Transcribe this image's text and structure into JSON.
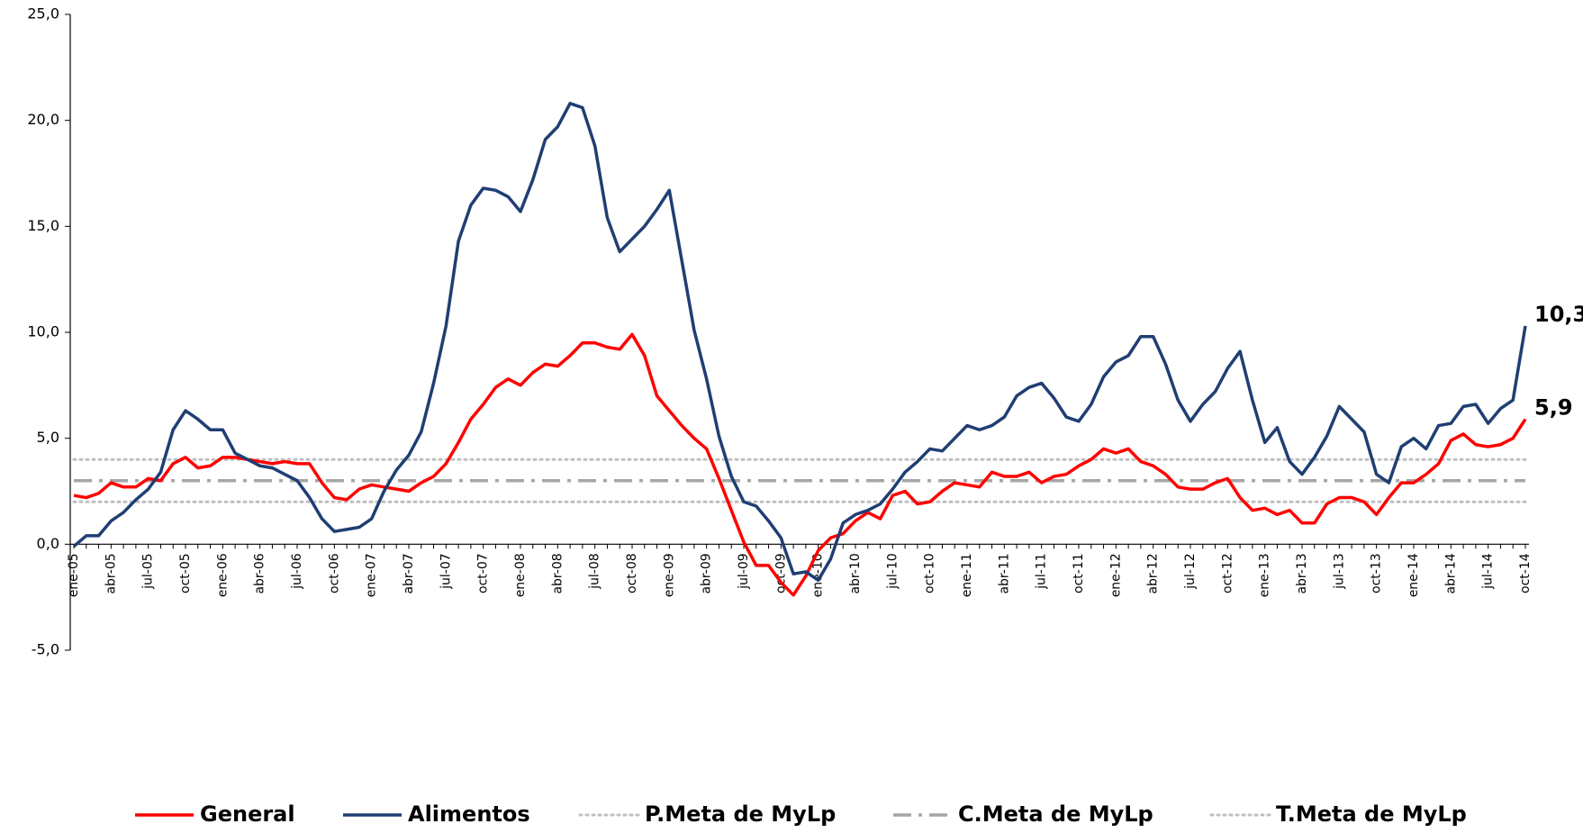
{
  "chart_data": {
    "type": "line",
    "categories": [
      "ene-05",
      null,
      null,
      "abr-05",
      null,
      null,
      "jul-05",
      null,
      null,
      "oct-05",
      null,
      null,
      "ene-06",
      null,
      null,
      "abr-06",
      null,
      null,
      "jul-06",
      null,
      null,
      "oct-06",
      null,
      null,
      "ene-07",
      null,
      null,
      "abr-07",
      null,
      null,
      "jul-07",
      null,
      null,
      "oct-07",
      null,
      null,
      "ene-08",
      null,
      null,
      "abr-08",
      null,
      null,
      "jul-08",
      null,
      null,
      "oct-08",
      null,
      null,
      "ene-09",
      null,
      null,
      "abr-09",
      null,
      null,
      "jul-09",
      null,
      null,
      "oct-09",
      null,
      null,
      "ene-10",
      null,
      null,
      "abr-10",
      null,
      null,
      "jul-10",
      null,
      null,
      "oct-10",
      null,
      null,
      "ene-11",
      null,
      null,
      "abr-11",
      null,
      null,
      "jul-11",
      null,
      null,
      "oct-11",
      null,
      null,
      "ene-12",
      null,
      null,
      "abr-12",
      null,
      null,
      "jul-12",
      null,
      null,
      "oct-12",
      null,
      null,
      "ene-13",
      null,
      null,
      "abr-13",
      null,
      null,
      "jul-13",
      null,
      null,
      "oct-13",
      null,
      null,
      "ene-14",
      null,
      null,
      "abr-14",
      null,
      null,
      "jul-14",
      null,
      null,
      "oct-14"
    ],
    "series": [
      {
        "name": "General",
        "color": "#ff0000",
        "style": "solid",
        "values": [
          2.3,
          2.2,
          2.4,
          2.9,
          2.7,
          2.7,
          3.1,
          3.0,
          3.8,
          4.1,
          3.6,
          3.7,
          4.1,
          4.1,
          4.0,
          3.9,
          3.8,
          3.9,
          3.8,
          3.8,
          2.9,
          2.2,
          2.1,
          2.6,
          2.8,
          2.7,
          2.6,
          2.5,
          2.9,
          3.2,
          3.8,
          4.8,
          5.9,
          6.6,
          7.4,
          7.8,
          7.5,
          8.1,
          8.5,
          8.4,
          8.9,
          9.5,
          9.5,
          9.3,
          9.2,
          9.9,
          8.9,
          7.0,
          6.3,
          5.6,
          5.0,
          4.5,
          3.1,
          1.6,
          0.1,
          -1.0,
          -1.0,
          -1.8,
          -2.4,
          -1.5,
          -0.3,
          0.3,
          0.5,
          1.1,
          1.5,
          1.2,
          2.3,
          2.5,
          1.9,
          2.0,
          2.5,
          2.9,
          2.8,
          2.7,
          3.4,
          3.2,
          3.2,
          3.4,
          2.9,
          3.2,
          3.3,
          3.7,
          4.0,
          4.5,
          4.3,
          4.5,
          3.9,
          3.7,
          3.3,
          2.7,
          2.6,
          2.6,
          2.9,
          3.1,
          2.2,
          1.6,
          1.7,
          1.4,
          1.6,
          1.0,
          1.0,
          1.9,
          2.2,
          2.2,
          2.0,
          1.4,
          2.2,
          2.9,
          2.9,
          3.3,
          3.8,
          4.9,
          5.2,
          4.7,
          4.6,
          4.7,
          5.0,
          5.9
        ],
        "value_labels": [
          null,
          null,
          null,
          null,
          null,
          null,
          null,
          null,
          null,
          null,
          null,
          null,
          null,
          null,
          null,
          null,
          null,
          null,
          null,
          null,
          null,
          null,
          null,
          null,
          null,
          null,
          null,
          null,
          null,
          null,
          null,
          null,
          null,
          null,
          null,
          null,
          null,
          null,
          null,
          null,
          null,
          null,
          null,
          null,
          null,
          null,
          null,
          null,
          null,
          null,
          null,
          null,
          null,
          null,
          null,
          null,
          null,
          null,
          null,
          null,
          null,
          null,
          null,
          null,
          null,
          null,
          null,
          null,
          null,
          null,
          null,
          null,
          null,
          null,
          null,
          null,
          null,
          null,
          null,
          null,
          null,
          null,
          null,
          null,
          null,
          null,
          null,
          null,
          null,
          null,
          null,
          null,
          null,
          null,
          null,
          null,
          null,
          null,
          null,
          null,
          null,
          null,
          null,
          null,
          null,
          null,
          null,
          null,
          null,
          null,
          null,
          null,
          null,
          null,
          null,
          null,
          null,
          "5,9"
        ]
      },
      {
        "name": "Alimentos",
        "color": "#1f3f73",
        "style": "solid",
        "values": [
          -0.1,
          0.4,
          0.4,
          1.1,
          1.5,
          2.1,
          2.6,
          3.4,
          5.4,
          6.3,
          5.9,
          5.4,
          5.4,
          4.3,
          4.0,
          3.7,
          3.6,
          3.3,
          3.0,
          2.2,
          1.2,
          0.6,
          0.7,
          0.8,
          1.2,
          2.5,
          3.5,
          4.2,
          5.3,
          7.6,
          10.3,
          14.3,
          16.0,
          16.8,
          16.7,
          16.4,
          15.7,
          17.2,
          19.1,
          19.7,
          20.8,
          20.6,
          18.8,
          15.4,
          13.8,
          14.4,
          15.0,
          15.8,
          16.7,
          13.4,
          10.1,
          7.8,
          5.1,
          3.2,
          2.0,
          1.8,
          1.1,
          0.3,
          -1.4,
          -1.3,
          -1.7,
          -0.7,
          1.0,
          1.4,
          1.6,
          1.9,
          2.6,
          3.4,
          3.9,
          4.5,
          4.4,
          5.0,
          5.6,
          5.4,
          5.6,
          6.0,
          7.0,
          7.4,
          7.6,
          6.9,
          6.0,
          5.8,
          6.6,
          7.9,
          8.6,
          8.9,
          9.8,
          9.8,
          8.5,
          6.8,
          5.8,
          6.6,
          7.2,
          8.3,
          9.1,
          6.8,
          4.8,
          5.5,
          3.9,
          3.3,
          4.1,
          5.1,
          6.5,
          5.9,
          5.3,
          3.3,
          2.9,
          4.6,
          5.0,
          4.5,
          5.6,
          5.7,
          6.5,
          6.6,
          5.7,
          6.4,
          6.8,
          10.3
        ],
        "value_labels": [
          null,
          null,
          null,
          null,
          null,
          null,
          null,
          null,
          null,
          null,
          null,
          null,
          null,
          null,
          null,
          null,
          null,
          null,
          null,
          null,
          null,
          null,
          null,
          null,
          null,
          null,
          null,
          null,
          null,
          null,
          null,
          null,
          null,
          null,
          null,
          null,
          null,
          null,
          null,
          null,
          null,
          null,
          null,
          null,
          null,
          null,
          null,
          null,
          null,
          null,
          null,
          null,
          null,
          null,
          null,
          null,
          null,
          null,
          null,
          null,
          null,
          null,
          null,
          null,
          null,
          null,
          null,
          null,
          null,
          null,
          null,
          null,
          null,
          null,
          null,
          null,
          null,
          null,
          null,
          null,
          null,
          null,
          null,
          null,
          null,
          null,
          null,
          null,
          null,
          null,
          null,
          null,
          null,
          null,
          null,
          null,
          null,
          null,
          null,
          null,
          null,
          null,
          null,
          null,
          null,
          null,
          null,
          null,
          null,
          null,
          null,
          null,
          null,
          null,
          null,
          null,
          null,
          "10,3"
        ]
      },
      {
        "name": "P.Meta de MyLp",
        "color": "#bfbfbf",
        "style": "dotted",
        "values": [
          4,
          4,
          4,
          4,
          4,
          4,
          4,
          4,
          4,
          4,
          4,
          4,
          4,
          4,
          4,
          4,
          4,
          4,
          4,
          4,
          4,
          4,
          4,
          4,
          4,
          4,
          4,
          4,
          4,
          4,
          4,
          4,
          4,
          4,
          4,
          4,
          4,
          4,
          4,
          4,
          4,
          4,
          4,
          4,
          4,
          4,
          4,
          4,
          4,
          4,
          4,
          4,
          4,
          4,
          4,
          4,
          4,
          4,
          4,
          4,
          4,
          4,
          4,
          4,
          4,
          4,
          4,
          4,
          4,
          4,
          4,
          4,
          4,
          4,
          4,
          4,
          4,
          4,
          4,
          4,
          4,
          4,
          4,
          4,
          4,
          4,
          4,
          4,
          4,
          4,
          4,
          4,
          4,
          4,
          4,
          4,
          4,
          4,
          4,
          4,
          4,
          4,
          4,
          4,
          4,
          4,
          4,
          4,
          4,
          4,
          4,
          4,
          4,
          4,
          4,
          4,
          4,
          4
        ]
      },
      {
        "name": "C.Meta de MyLp",
        "color": "#a6a6a6",
        "style": "dashdot",
        "values": [
          3,
          3,
          3,
          3,
          3,
          3,
          3,
          3,
          3,
          3,
          3,
          3,
          3,
          3,
          3,
          3,
          3,
          3,
          3,
          3,
          3,
          3,
          3,
          3,
          3,
          3,
          3,
          3,
          3,
          3,
          3,
          3,
          3,
          3,
          3,
          3,
          3,
          3,
          3,
          3,
          3,
          3,
          3,
          3,
          3,
          3,
          3,
          3,
          3,
          3,
          3,
          3,
          3,
          3,
          3,
          3,
          3,
          3,
          3,
          3,
          3,
          3,
          3,
          3,
          3,
          3,
          3,
          3,
          3,
          3,
          3,
          3,
          3,
          3,
          3,
          3,
          3,
          3,
          3,
          3,
          3,
          3,
          3,
          3,
          3,
          3,
          3,
          3,
          3,
          3,
          3,
          3,
          3,
          3,
          3,
          3,
          3,
          3,
          3,
          3,
          3,
          3,
          3,
          3,
          3,
          3,
          3,
          3,
          3,
          3,
          3,
          3,
          3,
          3,
          3,
          3,
          3,
          3
        ]
      },
      {
        "name": "T.Meta de MyLp",
        "color": "#bfbfbf",
        "style": "dotted",
        "values": [
          2,
          2,
          2,
          2,
          2,
          2,
          2,
          2,
          2,
          2,
          2,
          2,
          2,
          2,
          2,
          2,
          2,
          2,
          2,
          2,
          2,
          2,
          2,
          2,
          2,
          2,
          2,
          2,
          2,
          2,
          2,
          2,
          2,
          2,
          2,
          2,
          2,
          2,
          2,
          2,
          2,
          2,
          2,
          2,
          2,
          2,
          2,
          2,
          2,
          2,
          2,
          2,
          2,
          2,
          2,
          2,
          2,
          2,
          2,
          2,
          2,
          2,
          2,
          2,
          2,
          2,
          2,
          2,
          2,
          2,
          2,
          2,
          2,
          2,
          2,
          2,
          2,
          2,
          2,
          2,
          2,
          2,
          2,
          2,
          2,
          2,
          2,
          2,
          2,
          2,
          2,
          2,
          2,
          2,
          2,
          2,
          2,
          2,
          2,
          2,
          2,
          2,
          2,
          2,
          2,
          2,
          2,
          2,
          2,
          2,
          2,
          2,
          2,
          2,
          2,
          2,
          2,
          2
        ]
      }
    ],
    "ylim": [
      -5,
      25
    ],
    "yticks": [
      {
        "value": -5,
        "label": "-5,0"
      },
      {
        "value": 0,
        "label": "0,0"
      },
      {
        "value": 5,
        "label": "5,0"
      },
      {
        "value": 10,
        "label": "10,0"
      },
      {
        "value": 15,
        "label": "15,0"
      },
      {
        "value": 20,
        "label": "20,0"
      },
      {
        "value": 25,
        "label": "25,0"
      }
    ],
    "grid": false,
    "legend": "bottom"
  }
}
